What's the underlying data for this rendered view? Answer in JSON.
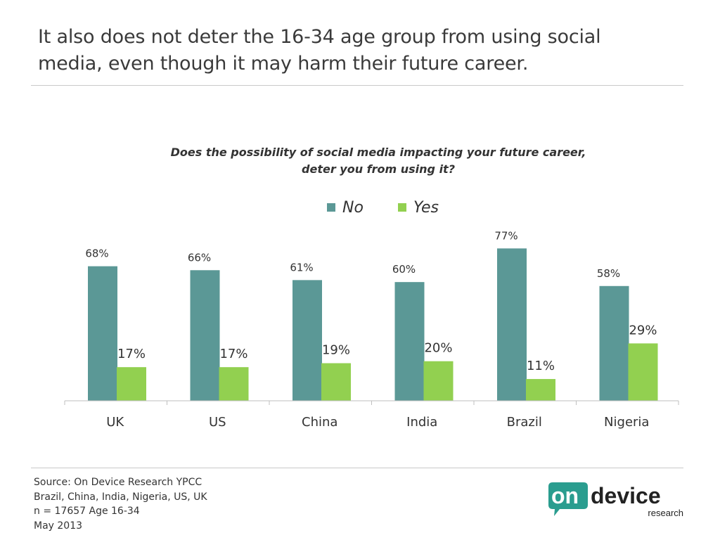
{
  "slide": {
    "title": "It also does not deter the 16-34 age group from using social media, even though it may harm their future career."
  },
  "source": {
    "lines": [
      "Source: On Device Research YPCC",
      "Brazil, China, India, Nigeria, US, UK",
      "n = 17657 Age 16-34",
      "May 2013"
    ]
  },
  "logo": {
    "text_on": "on",
    "text_device": "device",
    "text_research": "research"
  },
  "chart_data": {
    "type": "bar",
    "title_lines": [
      "Does the possibility of social media impacting your future career,",
      "deter you from using it?"
    ],
    "categories": [
      "UK",
      "US",
      "China",
      "India",
      "Brazil",
      "Nigeria"
    ],
    "series": [
      {
        "name": "No",
        "values": [
          68,
          66,
          61,
          60,
          77,
          58
        ],
        "labels": [
          "68%",
          "66%",
          "61%",
          "60%",
          "77%",
          "58%"
        ],
        "color": "#5b9896"
      },
      {
        "name": "Yes",
        "values": [
          17,
          17,
          19,
          20,
          11,
          29
        ],
        "labels": [
          "17%",
          "17%",
          "19%",
          "20%",
          "11%",
          "29%"
        ],
        "color": "#92d050"
      }
    ],
    "ylim": [
      0,
      100
    ],
    "grid": false,
    "legend": "top-center"
  },
  "colors": {
    "axis": "#bfbfbf",
    "logo_teal": "#2a9d8f",
    "logo_dark": "#222222"
  }
}
